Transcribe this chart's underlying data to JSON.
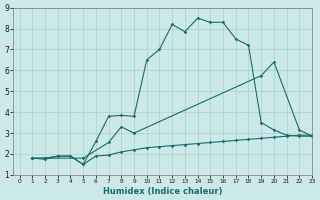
{
  "xlabel": "Humidex (Indice chaleur)",
  "xlim": [
    -0.5,
    23
  ],
  "ylim": [
    1,
    9
  ],
  "xticks": [
    0,
    1,
    2,
    3,
    4,
    5,
    6,
    7,
    8,
    9,
    10,
    11,
    12,
    13,
    14,
    15,
    16,
    17,
    18,
    19,
    20,
    21,
    22,
    23
  ],
  "yticks": [
    1,
    2,
    3,
    4,
    5,
    6,
    7,
    8,
    9
  ],
  "background_color": "#cce8e8",
  "line_color": "#1a6b6b",
  "grid_color": "#aacfcf",
  "series1_x": [
    1,
    2,
    3,
    4,
    5,
    6,
    7,
    8,
    9,
    10,
    11,
    12,
    13,
    14,
    15,
    16,
    17,
    18,
    19,
    20,
    21,
    22,
    23
  ],
  "series1_y": [
    1.8,
    1.8,
    1.9,
    1.9,
    1.5,
    1.9,
    1.95,
    2.1,
    2.2,
    2.3,
    2.35,
    2.4,
    2.45,
    2.5,
    2.55,
    2.6,
    2.65,
    2.7,
    2.75,
    2.8,
    2.85,
    2.9,
    2.9
  ],
  "series2_x": [
    1,
    2,
    3,
    4,
    5,
    6,
    7,
    8,
    9,
    10,
    11,
    12,
    13,
    14,
    15,
    16,
    17,
    18,
    19,
    20,
    21,
    22,
    23
  ],
  "series2_y": [
    1.8,
    1.75,
    1.9,
    1.9,
    1.5,
    2.6,
    3.8,
    3.85,
    3.8,
    6.5,
    7.0,
    8.2,
    7.85,
    8.5,
    8.3,
    8.3,
    7.5,
    7.2,
    3.5,
    3.15,
    2.9,
    2.85,
    2.85
  ],
  "series3_x": [
    1,
    2,
    5,
    7,
    8,
    9,
    19,
    20,
    22,
    23
  ],
  "series3_y": [
    1.8,
    1.8,
    1.8,
    2.55,
    3.3,
    3.0,
    5.75,
    6.4,
    3.15,
    2.85
  ]
}
